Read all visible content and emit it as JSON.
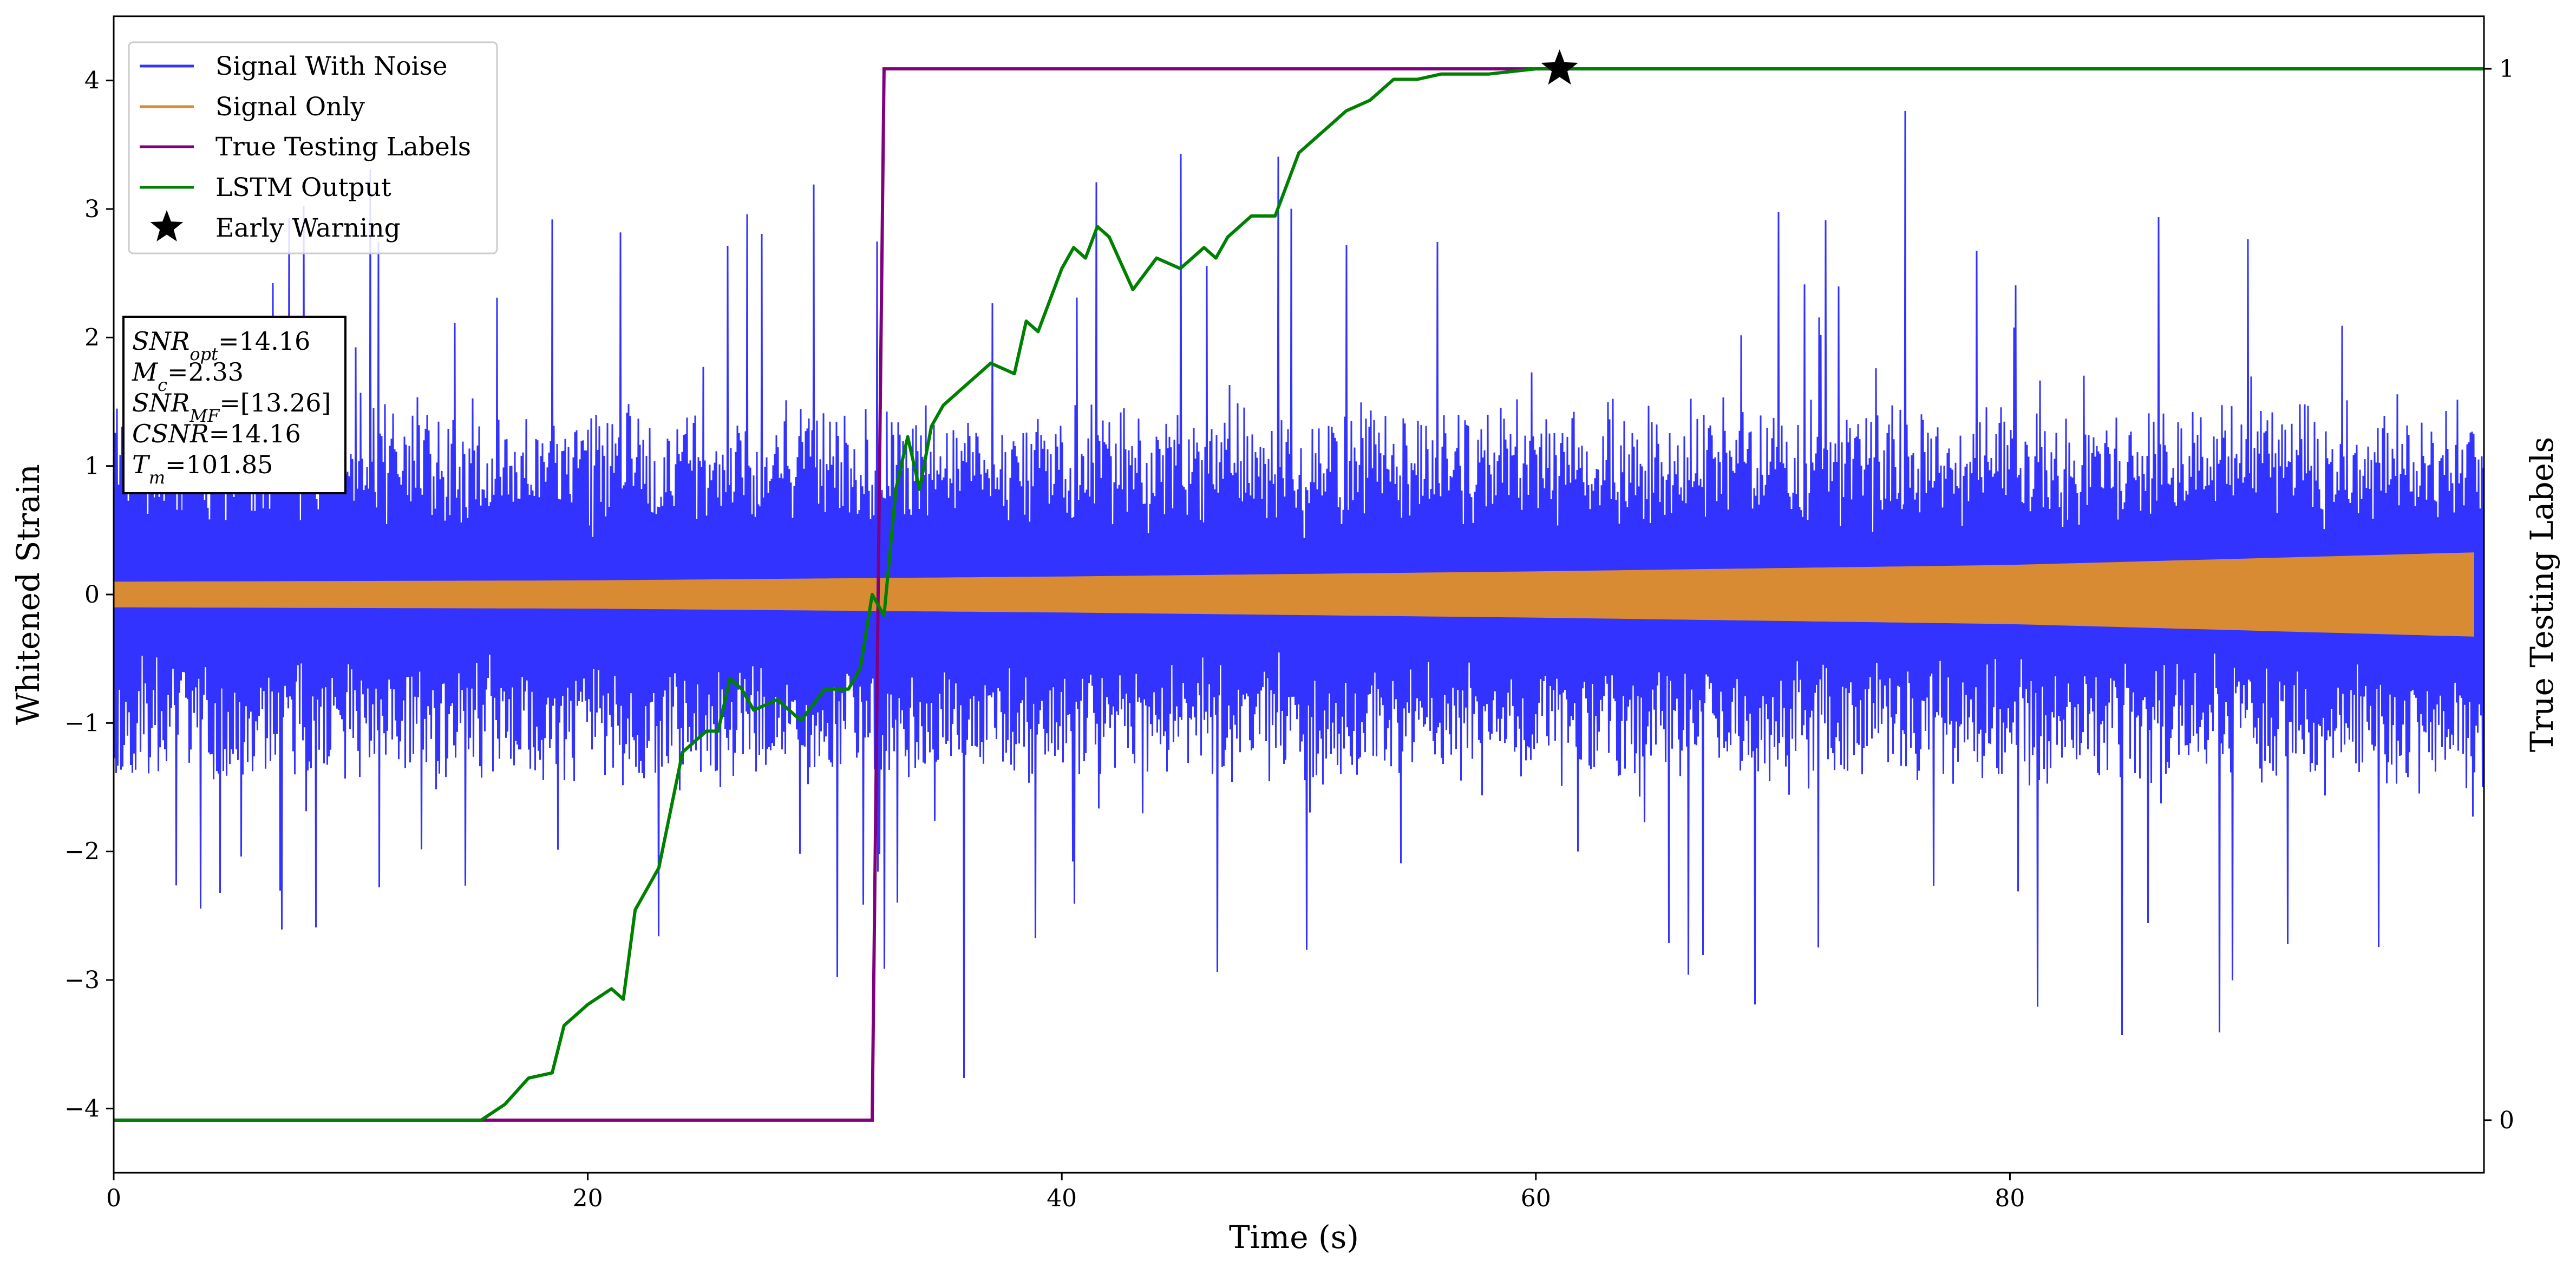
{
  "chart_data": {
    "type": "line",
    "xlabel": "Time (s)",
    "ylabel_left": "Whitened Strain",
    "ylabel_right": "True Testing Labels",
    "xlim": [
      0,
      100
    ],
    "ylim_left": [
      -4.5,
      4.5
    ],
    "ylim_right": [
      -0.05,
      1.05
    ],
    "x_ticks": [
      0,
      20,
      40,
      60,
      80
    ],
    "y_ticks_left": [
      -4,
      -3,
      -2,
      -1,
      0,
      1,
      2,
      3,
      4
    ],
    "y_ticks_right": [
      0,
      1
    ],
    "grid": false,
    "legend_position": "top-left",
    "legend": [
      "Signal With Noise",
      "Signal Only",
      "True Testing Labels",
      "LSTM Output",
      "Early Warning"
    ],
    "colors": {
      "signal_with_noise": "#3333ff",
      "signal_only": "#d98b33",
      "true_labels": "#800080",
      "lstm_output": "#008000",
      "early_warning": "#000000"
    },
    "series": [
      {
        "name": "Signal With Noise",
        "axis": "left",
        "description_values": "dense noisy trace, typical amplitude about ±1.2, spikes up to about ±3.8",
        "noise_envelope": 1.2
      },
      {
        "name": "Signal Only",
        "axis": "left",
        "envelope_x": [
          0,
          20,
          40,
          60,
          80,
          100
        ],
        "envelope_y": [
          0.1,
          0.11,
          0.14,
          0.18,
          0.23,
          0.33
        ]
      },
      {
        "name": "True Testing Labels",
        "axis": "right",
        "x": [
          0,
          32.0,
          32.5,
          100
        ],
        "y": [
          0,
          0,
          1,
          1
        ]
      },
      {
        "name": "LSTM Output",
        "axis": "right",
        "x": [
          0,
          15.5,
          16.5,
          17.5,
          18.5,
          19.0,
          20.0,
          21.0,
          21.5,
          22.0,
          23.0,
          24.0,
          25.0,
          25.5,
          26.0,
          26.5,
          27.0,
          28.0,
          29.0,
          30.0,
          31.0,
          31.5,
          32.0,
          32.5,
          33.0,
          33.5,
          34.0,
          34.5,
          35.0,
          36.0,
          36.5,
          37.0,
          38.0,
          38.5,
          39.0,
          40.0,
          40.5,
          41.0,
          41.5,
          42.0,
          43.0,
          44.0,
          45.0,
          46.0,
          46.5,
          47.0,
          48.0,
          49.0,
          50.0,
          51.0,
          52.0,
          53.0,
          54.0,
          55.0,
          56.0,
          57.0,
          58.0,
          60.0,
          62.0,
          64.0,
          66.0,
          70.0,
          100
        ],
        "y": [
          0,
          0,
          0.015,
          0.04,
          0.045,
          0.09,
          0.11,
          0.125,
          0.115,
          0.2,
          0.24,
          0.35,
          0.37,
          0.37,
          0.42,
          0.41,
          0.39,
          0.4,
          0.38,
          0.41,
          0.41,
          0.43,
          0.5,
          0.48,
          0.6,
          0.65,
          0.6,
          0.66,
          0.68,
          0.7,
          0.71,
          0.72,
          0.71,
          0.76,
          0.75,
          0.81,
          0.83,
          0.82,
          0.85,
          0.84,
          0.79,
          0.82,
          0.81,
          0.83,
          0.82,
          0.84,
          0.86,
          0.86,
          0.92,
          0.94,
          0.96,
          0.97,
          0.99,
          0.99,
          0.995,
          0.995,
          0.995,
          1.0,
          1.0,
          1.0,
          1.0,
          1.0,
          1.0
        ]
      },
      {
        "name": "Early Warning",
        "axis": "right",
        "x": [
          61
        ],
        "y": [
          1.0
        ]
      }
    ],
    "annotation": [
      {
        "sym": "SNR",
        "sub": "opt",
        "value": "=14.16"
      },
      {
        "sym": "M",
        "sub": "c",
        "value": "=2.33"
      },
      {
        "sym": "SNR",
        "sub": "MF",
        "value": "=[13.26]"
      },
      {
        "sym": "CSNR",
        "sub": "",
        "value": "=14.16"
      },
      {
        "sym": "T",
        "sub": "m",
        "value": "=101.85"
      }
    ]
  }
}
